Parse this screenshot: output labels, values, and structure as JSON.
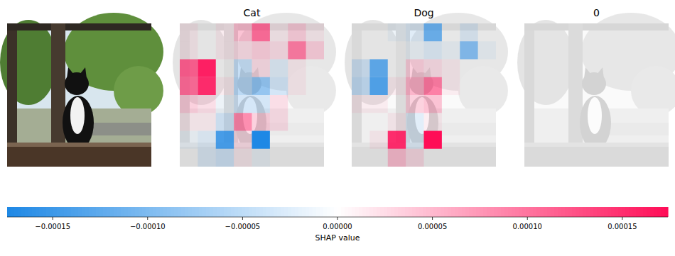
{
  "chart_data": {
    "type": "heatmap",
    "panels": [
      {
        "title": "Cat",
        "cells": [
          [
            1e-05,
            0,
            1e-05,
            4e-05,
            0.0001,
            1e-05,
            3e-05,
            1e-05
          ],
          [
            1e-05,
            0,
            1e-05,
            2e-05,
            3e-05,
            2e-05,
            9e-05,
            3e-05
          ],
          [
            0.00011,
            0.00016,
            0,
            -4e-05,
            2e-05,
            -2e-05,
            1e-05,
            0
          ],
          [
            0.0001,
            0.00015,
            1e-05,
            -5e-05,
            -8e-05,
            -3e-05,
            1e-05,
            0
          ],
          [
            3e-05,
            2e-05,
            -1e-05,
            -3e-05,
            -3e-05,
            2e-05,
            0,
            0
          ],
          [
            1e-05,
            1e-05,
            -3e-05,
            8e-05,
            3e-05,
            2e-05,
            0,
            0
          ],
          [
            -1e-05,
            -2e-05,
            -0.00014,
            2e-05,
            -0.00018,
            0,
            0,
            0
          ],
          [
            0,
            -2e-05,
            -3e-05,
            1e-05,
            -1e-05,
            0,
            0,
            0
          ]
        ]
      },
      {
        "title": "Dog",
        "cells": [
          [
            0,
            0,
            -1e-05,
            -2e-05,
            -0.00011,
            0,
            -2e-05,
            0
          ],
          [
            0,
            0,
            0,
            -1e-05,
            -2e-05,
            -1e-05,
            -9e-05,
            -1e-05
          ],
          [
            -3e-05,
            -0.00012,
            0,
            3e-05,
            2e-05,
            1e-05,
            0,
            0
          ],
          [
            -4e-05,
            -0.00013,
            1e-05,
            5e-05,
            9e-05,
            1e-05,
            0,
            0
          ],
          [
            1e-05,
            1e-05,
            0,
            3e-05,
            4e-05,
            0,
            0,
            0
          ],
          [
            0,
            0,
            1e-05,
            -2e-05,
            1e-05,
            0,
            0,
            0
          ],
          [
            0,
            1e-05,
            0.00015,
            -2e-05,
            0.00019,
            0,
            0,
            0
          ],
          [
            0,
            0,
            4e-05,
            2e-05,
            0,
            0,
            0,
            0
          ]
        ]
      },
      {
        "title": "0",
        "cells": [
          [
            0,
            0,
            0,
            0,
            0,
            0,
            0,
            0
          ],
          [
            0,
            0,
            0,
            0,
            0,
            0,
            0,
            0
          ],
          [
            0,
            0,
            0,
            0,
            0,
            0,
            0,
            0
          ],
          [
            0,
            0,
            0,
            0,
            0,
            0,
            0,
            0
          ],
          [
            0,
            0,
            0,
            0,
            0,
            0,
            0,
            0
          ],
          [
            0,
            0,
            0,
            0,
            0,
            0,
            0,
            0
          ],
          [
            0,
            0,
            0,
            0,
            0,
            0,
            0,
            0
          ],
          [
            0,
            0,
            0,
            0,
            0,
            0,
            0,
            0
          ]
        ]
      }
    ],
    "colorbar": {
      "label": "SHAP value",
      "range": [
        -0.000174,
        0.000174
      ],
      "ticks": [
        {
          "value": -0.00015,
          "label": "−0.00015"
        },
        {
          "value": -0.0001,
          "label": "−0.00010"
        },
        {
          "value": -5e-05,
          "label": "−0.00005"
        },
        {
          "value": 0,
          "label": "0.00000"
        },
        {
          "value": 5e-05,
          "label": "0.00005"
        },
        {
          "value": 0.0001,
          "label": "0.00010"
        },
        {
          "value": 0.00015,
          "label": "0.00015"
        }
      ]
    }
  }
}
